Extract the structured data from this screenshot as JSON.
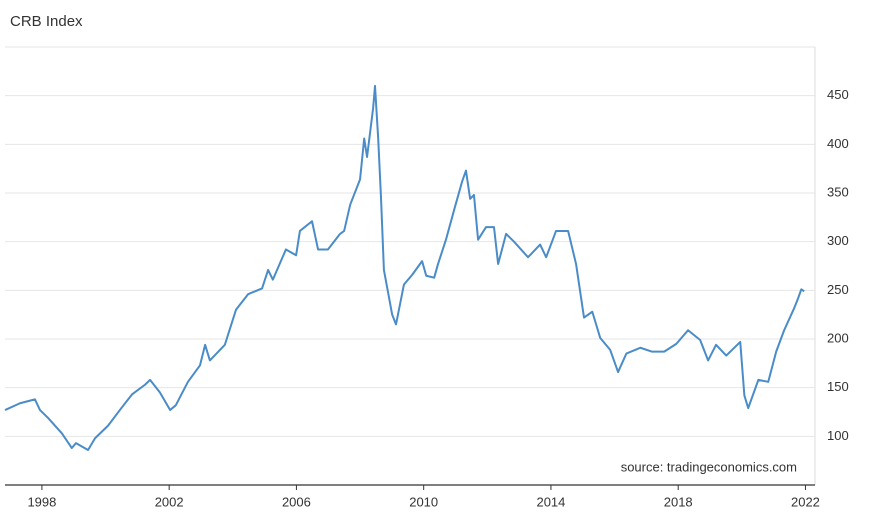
{
  "chart_data": {
    "type": "line",
    "title": "CRB Index",
    "source": "source: tradingeconomics.com",
    "x": [
      1996.84,
      1997.31,
      1997.78,
      1997.94,
      1998.19,
      1998.63,
      1998.94,
      1999.07,
      1999.45,
      1999.67,
      2000.08,
      2000.45,
      2000.83,
      2001.24,
      2001.4,
      2001.71,
      2002.03,
      2002.21,
      2002.59,
      2002.97,
      2003.13,
      2003.28,
      2003.75,
      2004.1,
      2004.48,
      2004.92,
      2005.11,
      2005.26,
      2005.67,
      2005.99,
      2006.11,
      2006.49,
      2006.68,
      2006.99,
      2007.37,
      2007.5,
      2007.69,
      2008.0,
      2008.13,
      2008.22,
      2008.41,
      2008.47,
      2008.57,
      2008.66,
      2008.75,
      2009.01,
      2009.13,
      2009.38,
      2009.64,
      2009.95,
      2010.08,
      2010.33,
      2010.45,
      2010.7,
      2010.96,
      2011.21,
      2011.33,
      2011.46,
      2011.58,
      2011.71,
      2011.96,
      2012.21,
      2012.34,
      2012.59,
      2012.84,
      2013.28,
      2013.66,
      2013.85,
      2014.16,
      2014.54,
      2014.79,
      2015.04,
      2015.3,
      2015.55,
      2015.86,
      2016.11,
      2016.37,
      2016.81,
      2017.18,
      2017.56,
      2017.94,
      2018.31,
      2018.69,
      2018.94,
      2019.19,
      2019.51,
      2019.95,
      2020.08,
      2020.2,
      2020.52,
      2020.83,
      2021.08,
      2021.33,
      2021.65,
      2021.77,
      2021.87,
      2021.96
    ],
    "series": [
      {
        "name": "CRB Index",
        "color": "#4a8cc7",
        "values": [
          127,
          134,
          138,
          127,
          119,
          103,
          88,
          93,
          86,
          98,
          111,
          127,
          143,
          153,
          158,
          145,
          127,
          132,
          156,
          173,
          194,
          178,
          194,
          230,
          246,
          252,
          271,
          261,
          292,
          286,
          311,
          321,
          292,
          292,
          308,
          311,
          338,
          364,
          406,
          387,
          437,
          460,
          406,
          344,
          271,
          225,
          215,
          256,
          266,
          280,
          265,
          263,
          277,
          302,
          333,
          362,
          373,
          344,
          348,
          302,
          315,
          315,
          277,
          308,
          300,
          284,
          297,
          284,
          311,
          311,
          277,
          222,
          228,
          201,
          189,
          166,
          185,
          191,
          187,
          187,
          195,
          209,
          199,
          178,
          194,
          183,
          197,
          142,
          129,
          158,
          156,
          187,
          209,
          232,
          242,
          251,
          249
        ]
      }
    ],
    "xlim": [
      1996.84,
      2022.3
    ],
    "xticks": [
      1998,
      2002,
      2006,
      2010,
      2014,
      2018,
      2022
    ],
    "ylim": [
      50,
      500
    ],
    "yticks": [
      100,
      150,
      200,
      250,
      300,
      350,
      400,
      450
    ],
    "grid": true
  }
}
